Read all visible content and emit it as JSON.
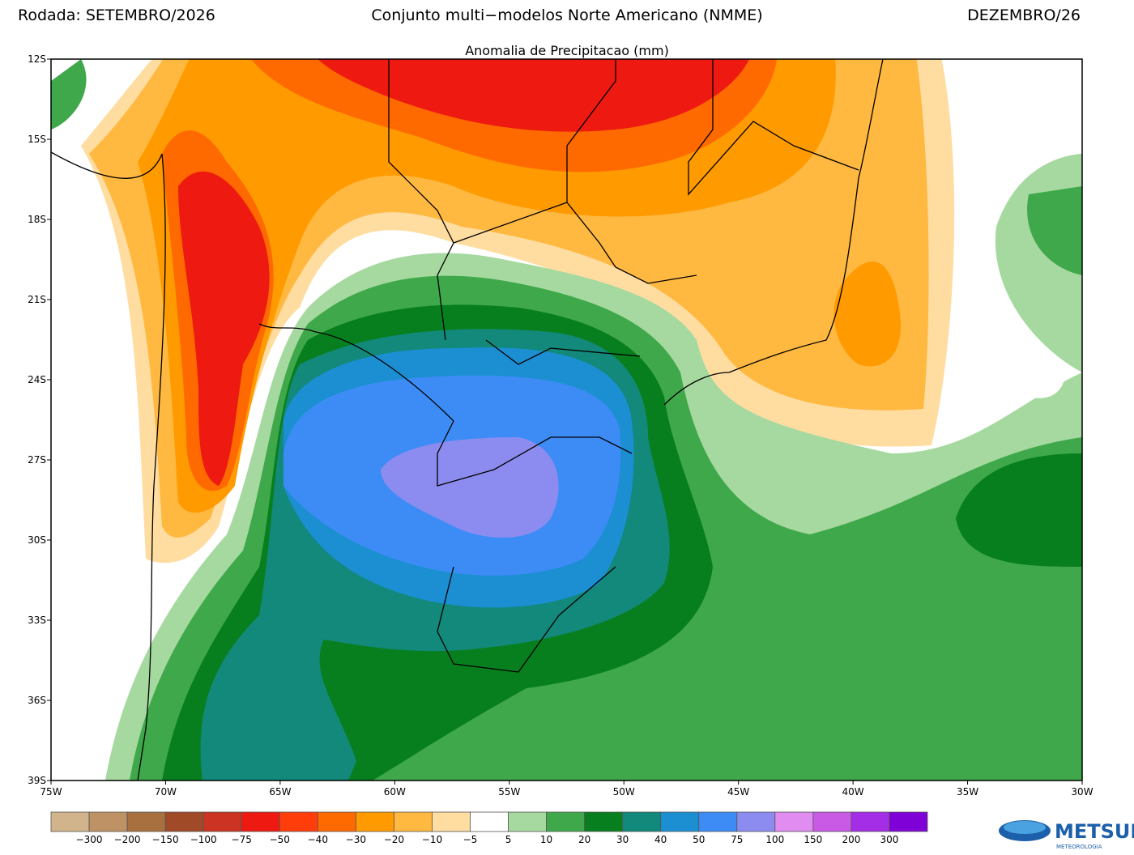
{
  "header": {
    "left": "Rodada: SETEMBRO/2026",
    "center": "Conjunto multi−modelos Norte Americano (NMME)",
    "right": "DEZEMBRO/26",
    "subtitle": "Anomalia de Precipitacao (mm)"
  },
  "map": {
    "lat_ticks": [
      "12S",
      "15S",
      "18S",
      "21S",
      "24S",
      "27S",
      "30S",
      "33S",
      "36S",
      "39S"
    ],
    "lon_ticks": [
      "75W",
      "70W",
      "65W",
      "60W",
      "55W",
      "50W",
      "45W",
      "40W",
      "35W",
      "30W"
    ]
  },
  "legend": {
    "labels": [
      "−300",
      "−200",
      "−150",
      "−100",
      "−75",
      "−50",
      "−40",
      "−30",
      "−20",
      "−10",
      "−5",
      "5",
      "10",
      "20",
      "30",
      "40",
      "50",
      "75",
      "100",
      "150",
      "200",
      "300"
    ],
    "colors": [
      "#d2b48c",
      "#be9264",
      "#a8703f",
      "#a04a28",
      "#cc3322",
      "#ee1a12",
      "#ff3d0a",
      "#ff6a00",
      "#ff9a00",
      "#ffb840",
      "#ffdca0",
      "#ffffff",
      "#a6d9a0",
      "#3fa84a",
      "#087f1e",
      "#12897a",
      "#1b8fd2",
      "#3d8cf5",
      "#8c8cf0",
      "#e08cf0",
      "#c85ae6",
      "#a42de6",
      "#8000d8"
    ]
  },
  "logo": {
    "name": "METSUL",
    "tagline": "METEOROLOGIA"
  }
}
